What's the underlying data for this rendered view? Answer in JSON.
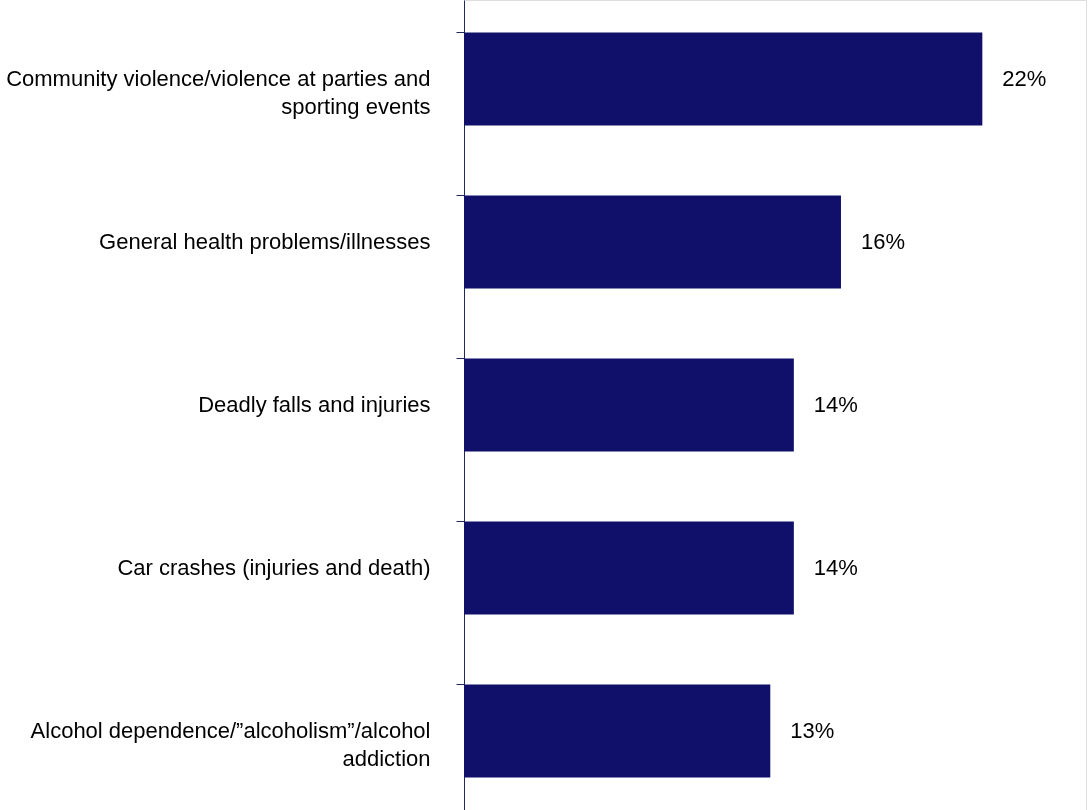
{
  "chart_data": {
    "type": "bar",
    "orientation": "horizontal",
    "categories": [
      "Community violence/violence at parties and sporting events",
      "General health problems/illnesses",
      "Deadly falls and injuries",
      "Car crashes (injuries and death)",
      "Alcohol dependence/”alcoholism”/alcohol addiction"
    ],
    "values": [
      22,
      16,
      14,
      14,
      13
    ],
    "value_labels": [
      "22%",
      "16%",
      "14%",
      "14%",
      "13%"
    ],
    "color": "#10106b",
    "grid": false,
    "tick_labels": "y"
  }
}
